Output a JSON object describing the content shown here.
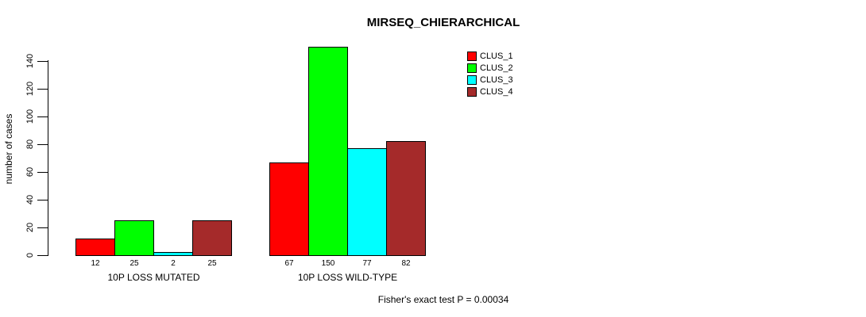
{
  "chart_data": {
    "type": "bar",
    "title": "MIRSEQ_CHIERARCHICAL",
    "ylabel": "number of cases",
    "xlabel": "",
    "footer": "Fisher's exact test P = 0.00034",
    "categories": [
      "10P LOSS MUTATED",
      "10P LOSS WILD-TYPE"
    ],
    "series": [
      {
        "name": "CLUS_1",
        "color": "#FF0000",
        "values": [
          12,
          67
        ]
      },
      {
        "name": "CLUS_2",
        "color": "#00FF00",
        "values": [
          25,
          150
        ]
      },
      {
        "name": "CLUS_3",
        "color": "#00FFFF",
        "values": [
          2,
          77
        ]
      },
      {
        "name": "CLUS_4",
        "color": "#A52A2A",
        "values": [
          25,
          82
        ]
      }
    ],
    "yticks": [
      0,
      20,
      40,
      60,
      80,
      100,
      120,
      140
    ],
    "ylim": [
      0,
      140
    ],
    "grid": false,
    "bar_border_color": "#000000",
    "legend_position": "top-right",
    "legend_entries": [
      "CLUS_1",
      "CLUS_2",
      "CLUS_3",
      "CLUS_4"
    ]
  }
}
